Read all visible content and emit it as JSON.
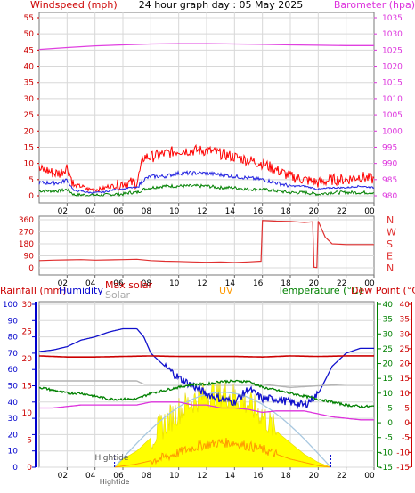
{
  "header": {
    "windspeed_label": "Windspeed (mph)",
    "title": "24 hour graph day : 05 May 2025",
    "barometer_label": "Barometer (hpa)"
  },
  "colors": {
    "wind_gust": "#ff0000",
    "wind_avg": "#2020e0",
    "wind_min": "#008000",
    "barometer": "#e040e0",
    "direction": "#e03030",
    "rain": "#cc0000",
    "humidity": "#1010cc",
    "max_solar": "#b4b4b4",
    "solar": "#ffff00",
    "uv": "#ff9900",
    "temperature": "#008000",
    "dewpoint": "#cc0000",
    "left_axis_red": "#cc0000",
    "left_axis_blue": "#0000cc",
    "right_axis_green": "#008000"
  },
  "chart_data": [
    {
      "type": "line",
      "name": "wind-barometer",
      "x_ticks": [
        "02",
        "04",
        "06",
        "08",
        "10",
        "12",
        "14",
        "16",
        "18",
        "20",
        "22",
        "00"
      ],
      "left_axis": {
        "label": "Windspeed (mph)",
        "ylim": [
          0,
          55
        ],
        "ticks": [
          "0",
          "5",
          "10",
          "15",
          "20",
          "25",
          "30",
          "35",
          "40",
          "45",
          "50",
          "55"
        ]
      },
      "right_axis": {
        "label": "Barometer (hpa)",
        "ylim": [
          980,
          1035
        ],
        "ticks": [
          "980",
          "985",
          "990",
          "995",
          "1000",
          "1005",
          "1010",
          "1015",
          "1020",
          "1025",
          "1030",
          "1035"
        ]
      },
      "series": [
        {
          "key": "wind_gust",
          "axis": "left",
          "x": [
            0,
            0.5,
            1,
            1.5,
            2,
            2.5,
            3,
            3.5,
            4,
            4.5,
            5,
            5.5,
            6,
            6.5,
            7,
            7.5,
            8,
            9,
            10,
            11,
            12,
            13,
            14,
            15,
            16,
            17,
            18,
            19,
            20,
            21,
            22,
            23,
            24
          ],
          "values": [
            8,
            8,
            7,
            7,
            9,
            3,
            3,
            2,
            2,
            2,
            3,
            3,
            4,
            4,
            4,
            12,
            12,
            13,
            14,
            14,
            14,
            13,
            12,
            11,
            10,
            8,
            6,
            5,
            4,
            5,
            5,
            6,
            5
          ]
        },
        {
          "key": "wind_avg",
          "axis": "left",
          "x": [
            0,
            0.5,
            1,
            1.5,
            2,
            2.5,
            3,
            3.5,
            4,
            4.5,
            5,
            5.5,
            6,
            6.5,
            7,
            7.5,
            8,
            9,
            10,
            11,
            12,
            13,
            14,
            15,
            16,
            17,
            18,
            19,
            20,
            21,
            22,
            23,
            24
          ],
          "values": [
            4,
            4,
            4,
            4,
            5,
            1.5,
            1.5,
            1,
            1,
            1,
            1.5,
            2,
            2,
            2.5,
            2.5,
            5,
            6,
            6,
            7,
            7,
            7,
            6.5,
            6,
            5.5,
            5,
            4,
            3,
            3,
            2,
            2.5,
            2.5,
            3,
            2.5
          ]
        },
        {
          "key": "wind_min",
          "axis": "left",
          "x": [
            0,
            0.5,
            1,
            1.5,
            2,
            2.5,
            3,
            3.5,
            4,
            4.5,
            5,
            5.5,
            6,
            6.5,
            7,
            7.5,
            8,
            9,
            10,
            11,
            12,
            13,
            14,
            15,
            16,
            17,
            18,
            19,
            20,
            21,
            22,
            23,
            24
          ],
          "values": [
            1.5,
            1.5,
            1.5,
            1.5,
            2,
            0.3,
            0.3,
            0.2,
            0.2,
            0.2,
            0.3,
            0.5,
            0.5,
            1,
            1,
            2,
            2.5,
            3,
            3,
            3,
            3,
            2.5,
            2.5,
            2,
            2,
            1.5,
            1,
            1,
            0.5,
            1,
            1,
            1,
            1
          ]
        },
        {
          "key": "barometer",
          "axis": "right",
          "x": [
            0,
            2,
            4,
            6,
            8,
            10,
            12,
            14,
            16,
            18,
            20,
            22,
            24
          ],
          "values": [
            1025.2,
            1025.8,
            1026.3,
            1026.6,
            1026.9,
            1027.0,
            1027.0,
            1026.9,
            1026.8,
            1026.6,
            1026.5,
            1026.4,
            1026.4
          ]
        }
      ]
    },
    {
      "type": "line",
      "name": "wind-direction",
      "x_ticks": [
        "02",
        "04",
        "06",
        "08",
        "10",
        "12",
        "14",
        "16",
        "18",
        "20",
        "22",
        "00"
      ],
      "left_axis": {
        "ylim": [
          0,
          360
        ],
        "ticks": [
          "0",
          "90",
          "180",
          "270",
          "360"
        ]
      },
      "direction_labels": [
        "N",
        "W",
        "S",
        "E",
        "N"
      ],
      "series": [
        {
          "key": "direction",
          "x": [
            0,
            1,
            2,
            3,
            4,
            5,
            6,
            7,
            8,
            9,
            10,
            11,
            12,
            13,
            14,
            15,
            15.9,
            16.0,
            17,
            18,
            19,
            19.6,
            19.7,
            19.9,
            20.0,
            20.5,
            21,
            22,
            23,
            24
          ],
          "values": [
            55,
            58,
            60,
            62,
            58,
            60,
            62,
            65,
            55,
            50,
            48,
            45,
            42,
            45,
            40,
            45,
            50,
            355,
            350,
            348,
            340,
            345,
            5,
            2,
            350,
            230,
            180,
            175,
            175,
            175
          ]
        }
      ]
    },
    {
      "type": "line",
      "name": "temp-humidity-solar",
      "x_ticks": [
        "02",
        "04",
        "06",
        "08",
        "10",
        "12",
        "14",
        "16",
        "18",
        "20",
        "22",
        "00"
      ],
      "rain_axis": {
        "label": "Rainfall (mm)",
        "ylim": [
          0,
          30
        ],
        "ticks": [
          "0",
          "5",
          "10",
          "15",
          "20",
          "25",
          "30"
        ]
      },
      "humidity_axis": {
        "label": "Humidity",
        "ylim": [
          0,
          100
        ],
        "ticks": [
          "0",
          "10",
          "20",
          "30",
          "40",
          "50",
          "60",
          "70",
          "80",
          "90",
          "100"
        ]
      },
      "temp_axis": {
        "label": "Temperature (°C)",
        "ylim": [
          -15,
          40
        ],
        "ticks": [
          "-15",
          "-10",
          "-5",
          "0",
          "5",
          "10",
          "15",
          "20",
          "25",
          "30",
          "35",
          "40"
        ]
      },
      "dew_axis": {
        "label": "Dew Point (°C)",
        "ylim": [
          -15,
          40
        ],
        "ticks": [
          "-15",
          "-10",
          "-5",
          "0",
          "5",
          "10",
          "15",
          "20",
          "25",
          "30",
          "35",
          "40"
        ]
      },
      "legend": [
        "Rainfall (mm)",
        "Humidity",
        "Max solar",
        "Solar",
        "UV",
        "Temperature (°C)",
        "Dew Point (°C)"
      ],
      "annotations": {
        "hightide": "Hightide"
      },
      "series": [
        {
          "key": "humidity",
          "axis": "humidity",
          "x": [
            0,
            1,
            2,
            3,
            4,
            5,
            6,
            7,
            7.5,
            8,
            9,
            10,
            11,
            12,
            13,
            14,
            15,
            16,
            17,
            18,
            19,
            20,
            21,
            22,
            23,
            24
          ],
          "values": [
            71,
            72,
            74,
            78,
            80,
            83,
            85,
            85,
            80,
            70,
            62,
            55,
            50,
            45,
            42,
            40,
            48,
            42,
            42,
            40,
            38,
            45,
            62,
            70,
            73,
            73
          ]
        },
        {
          "key": "rain",
          "axis": "rain",
          "x": [
            0,
            2,
            4,
            6,
            8,
            10,
            12,
            14,
            16,
            18,
            20,
            22,
            24
          ],
          "values": [
            20.5,
            20.3,
            20.3,
            20.4,
            20.5,
            20.4,
            20.4,
            20.4,
            20.3,
            20.5,
            20.4,
            20.5,
            20.5
          ]
        },
        {
          "key": "max_solar",
          "axis": "humidity",
          "x": [
            0,
            2,
            4,
            6,
            7,
            7.5,
            8,
            10,
            12,
            14,
            16,
            18,
            20,
            22,
            24
          ],
          "values": [
            53,
            53,
            53,
            53,
            53,
            51,
            51,
            51,
            51,
            51,
            51,
            49,
            50,
            51,
            51
          ]
        },
        {
          "key": "temperature",
          "axis": "temp",
          "x": [
            0,
            1,
            2,
            3,
            4,
            5,
            6,
            7,
            8,
            9,
            10,
            11,
            12,
            13,
            14,
            15,
            16,
            17,
            18,
            19,
            20,
            21,
            22,
            23,
            24
          ],
          "values": [
            12,
            11,
            10,
            10,
            9,
            8,
            8,
            8,
            10,
            11,
            12,
            13,
            13,
            14,
            14,
            14,
            12,
            11,
            10,
            9,
            8,
            7,
            6,
            5.5,
            5.5
          ]
        },
        {
          "key": "dewpoint",
          "axis": "dew",
          "x": [
            0,
            1,
            2,
            3,
            4,
            5,
            6,
            7,
            8,
            9,
            10,
            11,
            12,
            13,
            14,
            15,
            16,
            17,
            18,
            19,
            20,
            21,
            22,
            23,
            24
          ],
          "values": [
            5,
            5,
            5.5,
            6,
            6,
            6,
            6,
            6,
            7,
            7,
            7,
            6,
            6,
            5,
            5,
            4.5,
            3.5,
            4,
            4,
            4,
            3,
            2,
            1.5,
            1,
            1
          ]
        }
      ],
      "solar": {
        "x": [
          5.4,
          6,
          7,
          8,
          9,
          10,
          11,
          12,
          13,
          14,
          15,
          16,
          17,
          18,
          19,
          20,
          20.9
        ],
        "values": [
          0,
          5,
          10,
          18,
          27,
          35,
          41,
          45,
          46,
          44,
          39,
          32,
          22,
          15,
          8,
          3,
          0
        ]
      },
      "uv": {
        "x": [
          5.4,
          7,
          8,
          9,
          10,
          11,
          12,
          13,
          14,
          15,
          16,
          17,
          18,
          19,
          20,
          20.9
        ],
        "values": [
          0,
          2,
          4,
          6,
          9,
          12,
          14,
          15,
          15,
          13,
          11,
          8,
          5,
          3,
          1,
          0
        ]
      }
    }
  ]
}
